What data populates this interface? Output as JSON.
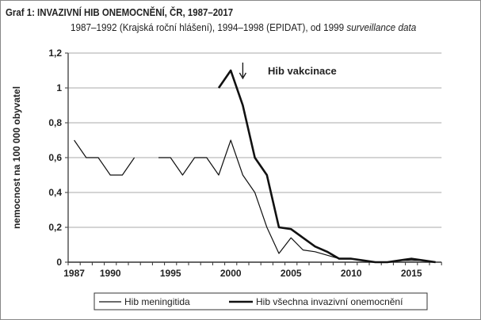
{
  "chart_data": {
    "type": "line",
    "title": "Graf 1: INVAZIVNÍ HIB ONEMOCNĚNÍ, ČR, 1987–2017",
    "subtitle_prefix": "1987–1992 (Krajská roční hlášení), 1994–1998 (EPIDAT), od 1999 ",
    "subtitle_italic": "surveillance data",
    "ylabel": "nemocnost na 100 000 obyvatel",
    "xlabel": "",
    "ylim": [
      0,
      1.2
    ],
    "yticks": [
      "0",
      "0,2",
      "0,4",
      "0,6",
      "0,8",
      "1",
      "1,2"
    ],
    "xticks": [
      "1987",
      "1990",
      "1995",
      "2000",
      "2005",
      "2010",
      "2015"
    ],
    "x": [
      1987,
      1988,
      1989,
      1990,
      1991,
      1992,
      1993,
      1994,
      1995,
      1996,
      1997,
      1998,
      1999,
      2000,
      2001,
      2002,
      2003,
      2004,
      2005,
      2006,
      2007,
      2008,
      2009,
      2010,
      2011,
      2012,
      2013,
      2014,
      2015,
      2016,
      2017
    ],
    "series": [
      {
        "name": "Hib meningitida",
        "values": [
          0.7,
          0.6,
          0.6,
          0.5,
          0.5,
          0.6,
          null,
          0.6,
          0.6,
          0.5,
          0.6,
          0.6,
          0.5,
          0.7,
          0.5,
          0.4,
          0.2,
          0.05,
          0.14,
          0.07,
          0.06,
          0.04,
          0.02,
          0.02,
          0.01,
          0,
          0,
          0.01,
          0.01,
          0.01,
          0
        ]
      },
      {
        "name": "Hib všechna invazivní onemocnění",
        "values": [
          null,
          null,
          null,
          null,
          null,
          null,
          null,
          null,
          null,
          null,
          null,
          null,
          1.0,
          1.1,
          0.9,
          0.6,
          0.5,
          0.2,
          0.19,
          0.14,
          0.09,
          0.06,
          0.02,
          0.02,
          0.01,
          0,
          0,
          0.01,
          0.02,
          0.01,
          0
        ]
      }
    ],
    "annotation": {
      "text": "Hib vakcinace",
      "year": 2001
    },
    "grid": true,
    "legend": "bottom"
  }
}
